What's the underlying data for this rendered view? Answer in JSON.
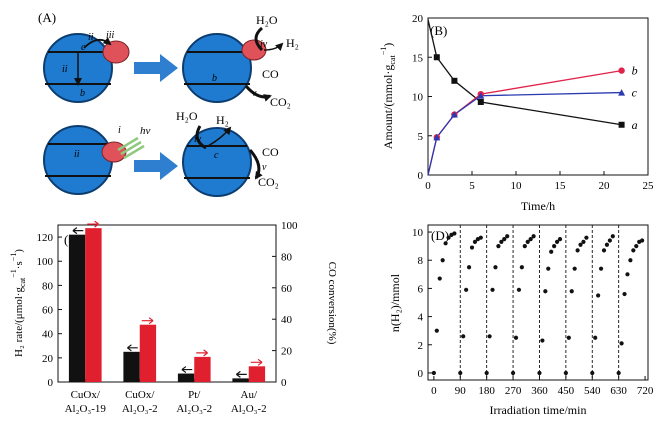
{
  "panel_a": {
    "label": "(A)",
    "roman": {
      "i": "i",
      "ii": "ii",
      "iii": "iii",
      "iv": "iv",
      "v": "v"
    },
    "latin": {
      "a": "a",
      "b": "b",
      "c": "c",
      "d": "d"
    },
    "species": {
      "h2o": "H₂O",
      "h2": "H₂",
      "co": "CO",
      "co2": "CO₂",
      "hv": "hv"
    },
    "colors": {
      "sphere": "#1f7bd0",
      "particle": "#e0525a",
      "arrow": "#2e7fcf",
      "light": "#8ec97e"
    }
  },
  "chart_data": [
    {
      "id": "B",
      "type": "line",
      "panel_label": "(B)",
      "title": "",
      "xlabel": "Time/h",
      "ylabel_parts": {
        "main": "Amount/(mmol·g",
        "sub": "cat",
        "sup": "−1",
        "close": ")"
      },
      "xlim": [
        0,
        25
      ],
      "ylim": [
        0,
        20
      ],
      "xticks": [
        0,
        5,
        10,
        15,
        20,
        25
      ],
      "yticks": [
        0,
        5,
        10,
        15,
        20
      ],
      "series": [
        {
          "name": "a",
          "color": "#111111",
          "marker": "square",
          "x": [
            0,
            1,
            3,
            6,
            22
          ],
          "y": [
            19.8,
            15,
            12,
            9.3,
            6.4
          ]
        },
        {
          "name": "b",
          "color": "#e2224a",
          "marker": "circle",
          "x": [
            0,
            1,
            3,
            6,
            22
          ],
          "y": [
            0,
            4.8,
            7.7,
            10.3,
            13.3
          ]
        },
        {
          "name": "c",
          "color": "#2a3ab0",
          "marker": "triangle",
          "x": [
            0,
            1,
            3,
            6,
            22
          ],
          "y": [
            0,
            4.8,
            7.7,
            10.1,
            10.5
          ]
        }
      ]
    },
    {
      "id": "C",
      "type": "bar",
      "panel_label": "(C)",
      "title": "",
      "ylabel_left_parts": {
        "main": "H₂ rate/(μmol·g",
        "sub": "cat",
        "sup": "−1",
        "tail": "·s",
        "sup2": "−1",
        "close": ")"
      },
      "ylabel_right": "CO conversion(%)",
      "categories": [
        {
          "line1": "CuOx/",
          "line2": "Al₂O₃-19"
        },
        {
          "line1": "CuOx/",
          "line2": "Al₂O₃-2"
        },
        {
          "line1": "Pt/",
          "line2": "Al₂O₃-2"
        },
        {
          "line1": "Au/",
          "line2": "Al₂O₃-2"
        }
      ],
      "ylim_left": [
        0,
        130
      ],
      "ylim_right": [
        0,
        100
      ],
      "yticks_left": [
        0,
        20,
        40,
        60,
        80,
        100,
        120
      ],
      "yticks_right": [
        0,
        20,
        40,
        60,
        80,
        100
      ],
      "series": [
        {
          "name": "H2 rate",
          "axis": "left",
          "color": "#111111",
          "values": [
            122,
            25,
            7,
            3
          ]
        },
        {
          "name": "CO conversion",
          "axis": "right",
          "color": "#e0202e",
          "values": [
            98,
            36.5,
            16,
            10
          ]
        }
      ]
    },
    {
      "id": "D",
      "type": "scatter",
      "panel_label": "(D)",
      "title": "",
      "xlabel": "Irradiation time/min",
      "ylabel": "n(H₂)/mmol",
      "xlim": [
        -20,
        730
      ],
      "ylim": [
        -0.5,
        10.5
      ],
      "xticks": [
        0,
        90,
        180,
        270,
        360,
        450,
        540,
        630,
        720
      ],
      "yticks": [
        0,
        2,
        4,
        6,
        8,
        10
      ],
      "cycle_boundaries": [
        90,
        180,
        270,
        360,
        450,
        540,
        630
      ],
      "series": [
        {
          "name": "n(H2)",
          "color": "#111111",
          "x": [
            0,
            10,
            20,
            30,
            40,
            50,
            60,
            70,
            90,
            100,
            110,
            120,
            130,
            140,
            150,
            160,
            180,
            190,
            200,
            210,
            220,
            230,
            240,
            250,
            270,
            280,
            290,
            300,
            310,
            320,
            330,
            340,
            360,
            370,
            380,
            390,
            400,
            410,
            420,
            430,
            450,
            460,
            470,
            480,
            490,
            500,
            510,
            520,
            540,
            550,
            560,
            570,
            580,
            590,
            600,
            610,
            630,
            640,
            650,
            660,
            670,
            680,
            690,
            700,
            710
          ],
          "y": [
            0,
            3,
            6.7,
            8,
            9.2,
            9.6,
            9.8,
            9.9,
            0,
            2.6,
            5.9,
            7.5,
            8.9,
            9.3,
            9.5,
            9.6,
            0,
            2.6,
            5.9,
            7.5,
            9,
            9.3,
            9.5,
            9.7,
            0,
            2.5,
            5.9,
            7.5,
            9,
            9.3,
            9.5,
            9.7,
            0,
            2.3,
            5.8,
            7.4,
            8.6,
            9,
            9.3,
            9.5,
            0,
            2.5,
            5.8,
            7.4,
            8.7,
            9.1,
            9.3,
            9.6,
            0,
            2.5,
            5.5,
            7.4,
            8.7,
            9.1,
            9.4,
            9.7,
            0,
            2.1,
            5.6,
            7,
            8,
            8.7,
            9,
            9.3,
            9.4
          ]
        }
      ]
    }
  ]
}
